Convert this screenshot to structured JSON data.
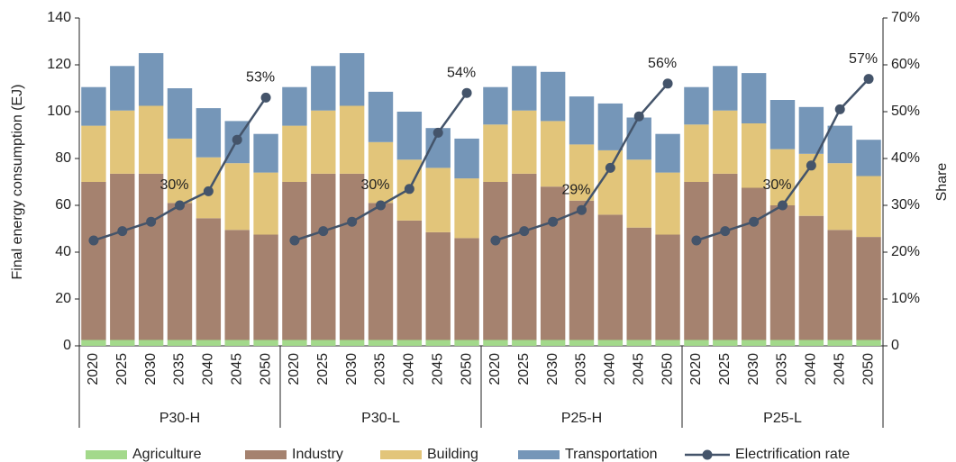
{
  "chart_data": {
    "type": "bar",
    "stacked": true,
    "y_label": "Final energy consumption (EJ)",
    "y2_label": "Share",
    "groups": [
      "P30-H",
      "P30-L",
      "P25-H",
      "P25-L"
    ],
    "categories": [
      "2020",
      "2025",
      "2030",
      "2035",
      "2040",
      "2045",
      "2050",
      "2020",
      "2025",
      "2030",
      "2035",
      "2040",
      "2045",
      "2050",
      "2020",
      "2025",
      "2030",
      "2035",
      "2040",
      "2045",
      "2050",
      "2020",
      "2025",
      "2030",
      "2035",
      "2040",
      "2045",
      "2050"
    ],
    "series": [
      {
        "name": "Agriculture",
        "color": "#a3d98b",
        "values": [
          2.5,
          2.5,
          2.5,
          2.5,
          2.5,
          2.5,
          2.5,
          2.5,
          2.5,
          2.5,
          2.5,
          2.5,
          2.5,
          2.5,
          2.5,
          2.5,
          2.5,
          2.5,
          2.5,
          2.5,
          2.5,
          2.5,
          2.5,
          2.5,
          2.5,
          2.5,
          2.5,
          2.5
        ]
      },
      {
        "name": "Industry",
        "color": "#a5826f",
        "values": [
          67.5,
          71,
          71,
          58.5,
          52,
          47,
          45,
          67.5,
          71,
          71,
          58.5,
          51,
          46,
          43.5,
          67.5,
          71,
          65.5,
          59.5,
          53.5,
          48,
          45,
          67.5,
          71,
          65,
          57.5,
          53,
          47,
          44
        ]
      },
      {
        "name": "Building",
        "color": "#e2c57a",
        "values": [
          24,
          27,
          29,
          27.5,
          26,
          28.5,
          26.5,
          24,
          27,
          29,
          26,
          26,
          27.5,
          25.5,
          24.5,
          27,
          28,
          24,
          27.5,
          29,
          26.5,
          24.5,
          27,
          27.5,
          24,
          26.5,
          28.5,
          26
        ]
      },
      {
        "name": "Transportation",
        "color": "#7596b8",
        "values": [
          16.5,
          19,
          22.5,
          21.5,
          21,
          18,
          16.5,
          16.5,
          19,
          22.5,
          21.5,
          20.5,
          17,
          17,
          16,
          19,
          21,
          20.5,
          20,
          18,
          16.5,
          16,
          19,
          21.5,
          21,
          20,
          16,
          15.5
        ]
      },
      {
        "name": "Electrification rate",
        "type": "line",
        "axis": "y2",
        "color": "#44546a",
        "values": [
          22.5,
          24.5,
          26.5,
          30,
          33,
          44,
          53,
          22.5,
          24.5,
          26.5,
          30,
          33.5,
          45.5,
          54,
          22.5,
          24.5,
          26.5,
          29,
          38,
          49,
          56,
          22.5,
          24.5,
          26.5,
          30,
          38.5,
          50.5,
          57
        ],
        "value_labels": [
          null,
          null,
          null,
          "30%",
          null,
          null,
          "53%",
          null,
          null,
          null,
          "30%",
          null,
          null,
          "54%",
          null,
          null,
          null,
          "29%",
          null,
          null,
          "56%",
          null,
          null,
          null,
          "30%",
          null,
          null,
          "57%"
        ]
      }
    ],
    "ylim": [
      0,
      140
    ],
    "yticks": [
      0,
      20,
      40,
      60,
      80,
      100,
      120,
      140
    ],
    "y2lim": [
      0,
      70
    ],
    "y2ticks": [
      0,
      {
        "value": 10,
        "label": "10%"
      },
      {
        "value": 20,
        "label": "20%"
      },
      {
        "value": 30,
        "label": "30%"
      },
      {
        "value": 40,
        "label": "40%"
      },
      {
        "value": 50,
        "label": "50%"
      },
      {
        "value": 60,
        "label": "60%"
      },
      {
        "value": 70,
        "label": "70%"
      }
    ],
    "legend": "bottom",
    "grid": false
  }
}
